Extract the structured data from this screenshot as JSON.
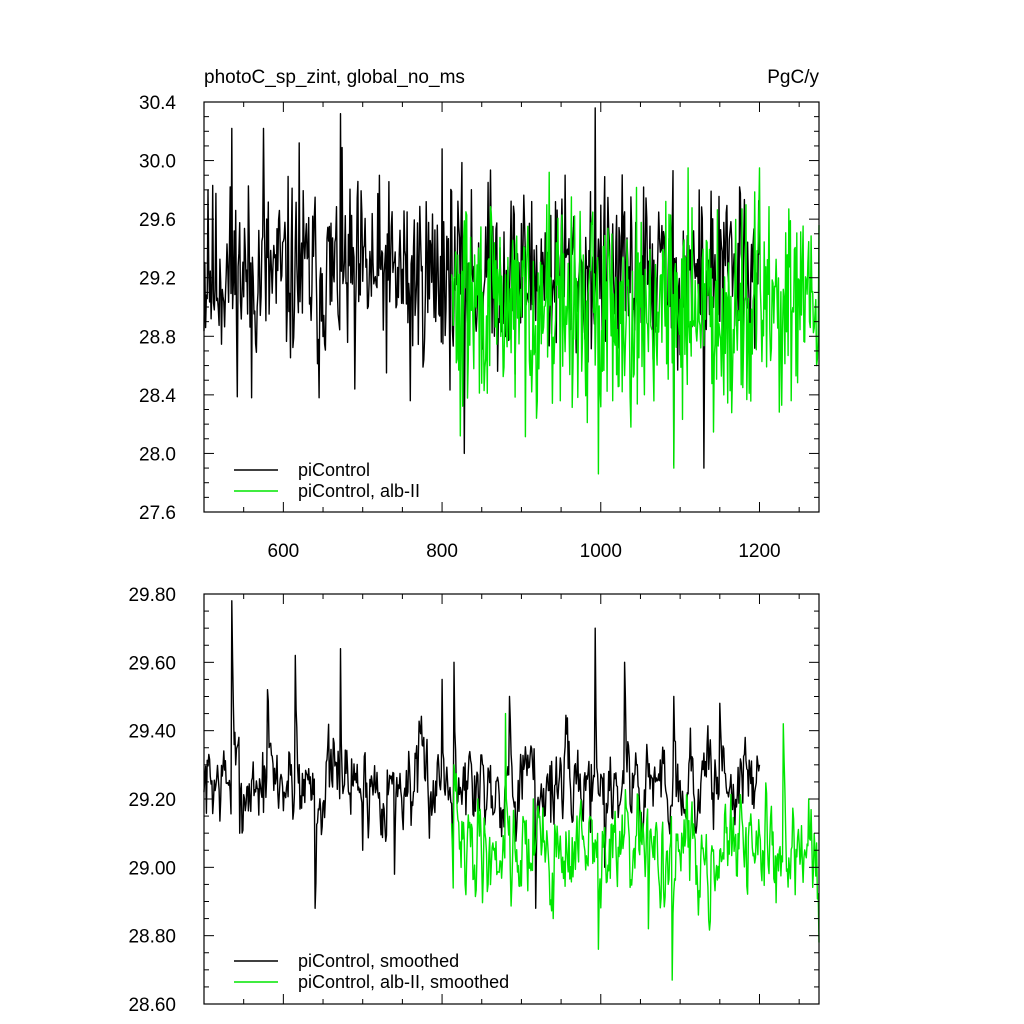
{
  "chart_data": [
    {
      "type": "line",
      "title_left": "photoC_sp_zint, global_no_ms",
      "title_right": "PgC/y",
      "xlim": [
        500,
        1275
      ],
      "ylim": [
        27.6,
        30.4
      ],
      "x_ticks": [
        600,
        800,
        1000,
        1200
      ],
      "x_tick_labels": [
        "600",
        "800",
        "1000",
        "1200"
      ],
      "y_ticks": [
        27.6,
        28.0,
        28.4,
        28.8,
        29.2,
        29.6,
        30.0,
        30.4
      ],
      "y_tick_labels": [
        "27.6",
        "28.0",
        "28.4",
        "28.8",
        "29.2",
        "29.6",
        "30.0",
        "30.4"
      ],
      "legend_position": "bottom-left",
      "series": [
        {
          "name": "piControl",
          "color": "#000000",
          "x_start": 500,
          "x_end": 1200,
          "mean": 29.22,
          "noise": 0.38,
          "seed": 11,
          "anchors": [
            [
              505,
              29.8
            ],
            [
              535,
              30.22
            ],
            [
              560,
              28.38
            ],
            [
              575,
              30.22
            ],
            [
              620,
              30.12
            ],
            [
              645,
              28.38
            ],
            [
              672,
              30.32
            ],
            [
              690,
              28.44
            ],
            [
              760,
              28.36
            ],
            [
              800,
              30.08
            ],
            [
              828,
              28.0
            ],
            [
              858,
              29.85
            ],
            [
              955,
              29.9
            ],
            [
              993,
              30.36
            ],
            [
              1092,
              27.92
            ],
            [
              1130,
              27.9
            ],
            [
              1175,
              29.82
            ]
          ]
        },
        {
          "name": "piControl, alb-II",
          "color": "#00e600",
          "x_start": 812,
          "x_end": 1275,
          "mean": 29.0,
          "noise": 0.42,
          "seed": 29,
          "anchors": [
            [
              815,
              29.2
            ],
            [
              823,
              28.12
            ],
            [
              830,
              29.65
            ],
            [
              860,
              28.6
            ],
            [
              935,
              29.92
            ],
            [
              965,
              28.6
            ],
            [
              997,
              27.86
            ],
            [
              1050,
              29.0
            ],
            [
              1092,
              27.9
            ],
            [
              1110,
              29.95
            ],
            [
              1155,
              28.4
            ],
            [
              1200,
              29.95
            ],
            [
              1240,
              28.36
            ],
            [
              1263,
              28.9
            ],
            [
              1272,
              28.6
            ]
          ]
        }
      ]
    },
    {
      "type": "line",
      "xlim": [
        500,
        1275
      ],
      "ylim": [
        28.6,
        29.8
      ],
      "x_ticks": [
        600,
        800,
        1000,
        1200
      ],
      "y_ticks": [
        28.6,
        28.8,
        29.0,
        29.2,
        29.4,
        29.6,
        29.8
      ],
      "y_tick_labels": [
        "28.60",
        "28.80",
        "29.00",
        "29.20",
        "29.40",
        "29.60",
        "29.80"
      ],
      "legend_position": "bottom-left",
      "series": [
        {
          "name": "piControl, smoothed",
          "color": "#000000",
          "x_start": 500,
          "x_end": 1200,
          "mean": 29.25,
          "noise": 0.16,
          "seed": 7,
          "anchors": [
            [
              500,
              29.22
            ],
            [
              535,
              29.78
            ],
            [
              545,
              29.1
            ],
            [
              580,
              29.52
            ],
            [
              615,
              29.62
            ],
            [
              640,
              28.88
            ],
            [
              672,
              29.64
            ],
            [
              700,
              29.05
            ],
            [
              740,
              28.98
            ],
            [
              800,
              29.55
            ],
            [
              815,
              29.6
            ],
            [
              840,
              29.15
            ],
            [
              885,
              29.5
            ],
            [
              918,
              28.88
            ],
            [
              993,
              29.7
            ],
            [
              1005,
              29.0
            ],
            [
              1030,
              29.6
            ],
            [
              1050,
              29.1
            ],
            [
              1092,
              29.5
            ],
            [
              1120,
              29.1
            ],
            [
              1150,
              29.48
            ],
            [
              1175,
              29.25
            ],
            [
              1200,
              29.3
            ]
          ]
        },
        {
          "name": "piControl, alb-II, smoothed",
          "color": "#00e600",
          "x_start": 812,
          "x_end": 1275,
          "mean": 29.05,
          "noise": 0.17,
          "seed": 41,
          "anchors": [
            [
              815,
              29.3
            ],
            [
              830,
              28.92
            ],
            [
              845,
              29.2
            ],
            [
              880,
              29.45
            ],
            [
              915,
              29.2
            ],
            [
              940,
              28.85
            ],
            [
              970,
              29.15
            ],
            [
              997,
              28.76
            ],
            [
              1030,
              29.1
            ],
            [
              1060,
              28.82
            ],
            [
              1090,
              28.67
            ],
            [
              1120,
              28.95
            ],
            [
              1150,
              29.05
            ],
            [
              1200,
              29.1
            ],
            [
              1230,
              29.42
            ],
            [
              1245,
              28.92
            ],
            [
              1262,
              29.2
            ],
            [
              1275,
              28.78
            ]
          ]
        }
      ]
    }
  ]
}
